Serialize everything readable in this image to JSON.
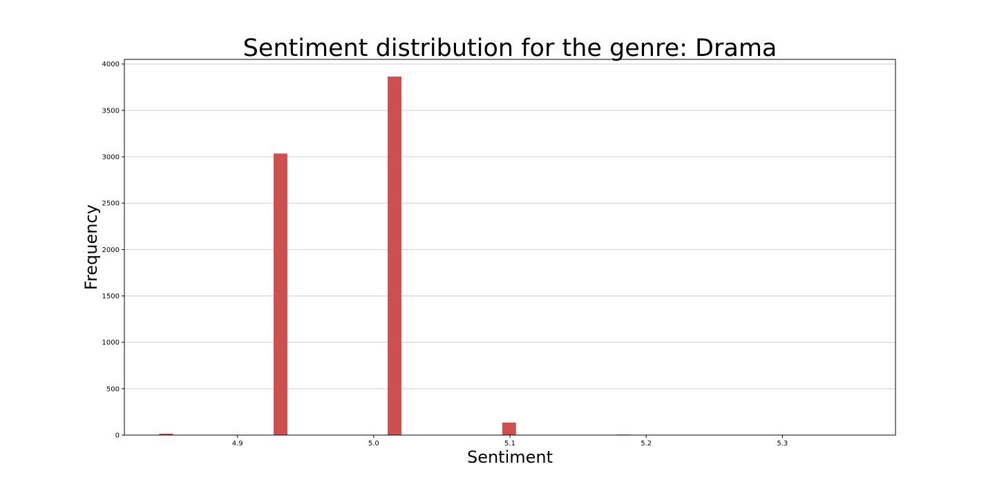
{
  "chart_data": {
    "type": "bar",
    "title": "Sentiment distribution for the genre: Drama",
    "xlabel": "Sentiment",
    "ylabel": "Frequency",
    "xlim": [
      4.817,
      5.383
    ],
    "ylim": [
      0,
      4050
    ],
    "x_ticks": [
      4.9,
      5.0,
      5.1,
      5.2,
      5.3
    ],
    "x_tick_labels": [
      "4.9",
      "5.0",
      "5.1",
      "5.2",
      "5.3"
    ],
    "y_ticks": [
      0,
      500,
      1000,
      1500,
      2000,
      2500,
      3000,
      3500,
      4000
    ],
    "y_tick_labels": [
      "0",
      "500",
      "1000",
      "1500",
      "2000",
      "2500",
      "3000",
      "3500",
      "4000"
    ],
    "bar_width": 0.0101,
    "bars": [
      {
        "x": 4.8476,
        "value": 15
      },
      {
        "x": 4.9316,
        "value": 3035
      },
      {
        "x": 5.0153,
        "value": 3865
      },
      {
        "x": 5.0994,
        "value": 135
      },
      {
        "x": 5.1834,
        "value": 6
      }
    ],
    "grid": "y",
    "color": "#cd4f4f"
  }
}
